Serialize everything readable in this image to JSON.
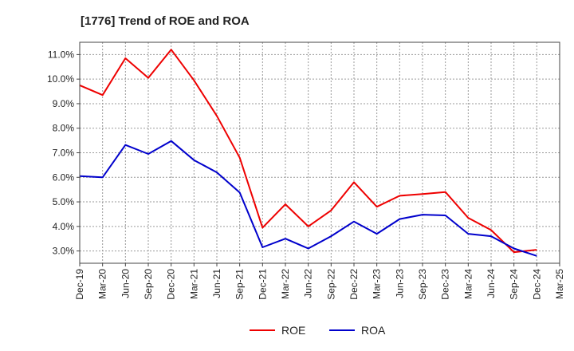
{
  "chart_data": {
    "type": "line",
    "title": "[1776]  Trend of ROE and ROA",
    "xlabel": "",
    "ylabel": "",
    "x": [
      "Dec-19",
      "Mar-20",
      "Jun-20",
      "Sep-20",
      "Dec-20",
      "Mar-21",
      "Jun-21",
      "Sep-21",
      "Dec-21",
      "Mar-22",
      "Jun-22",
      "Sep-22",
      "Dec-22",
      "Mar-23",
      "Jun-23",
      "Sep-23",
      "Dec-23",
      "Mar-24",
      "Jun-24",
      "Sep-24",
      "Dec-24",
      "Mar-25"
    ],
    "ylim": [
      2.5,
      11.5
    ],
    "yticks": [
      3.0,
      4.0,
      5.0,
      6.0,
      7.0,
      8.0,
      9.0,
      10.0,
      11.0
    ],
    "ytick_labels": [
      "3.0%",
      "4.0%",
      "5.0%",
      "6.0%",
      "7.0%",
      "8.0%",
      "9.0%",
      "10.0%",
      "11.0%"
    ],
    "grid": true,
    "legend_position": "bottom",
    "series": [
      {
        "name": "ROE",
        "color": "#ee0000",
        "values": [
          9.75,
          9.35,
          10.85,
          10.05,
          11.2,
          9.95,
          8.5,
          6.8,
          3.95,
          4.9,
          4.0,
          4.65,
          5.8,
          4.8,
          5.25,
          5.32,
          5.4,
          4.35,
          3.85,
          2.95,
          3.05,
          null
        ]
      },
      {
        "name": "ROA",
        "color": "#0000cc",
        "values": [
          6.05,
          6.0,
          7.32,
          6.95,
          7.48,
          6.7,
          6.2,
          5.38,
          3.15,
          3.5,
          3.1,
          3.6,
          4.2,
          3.7,
          4.3,
          4.48,
          4.45,
          3.7,
          3.6,
          3.1,
          2.8,
          null
        ]
      }
    ]
  }
}
